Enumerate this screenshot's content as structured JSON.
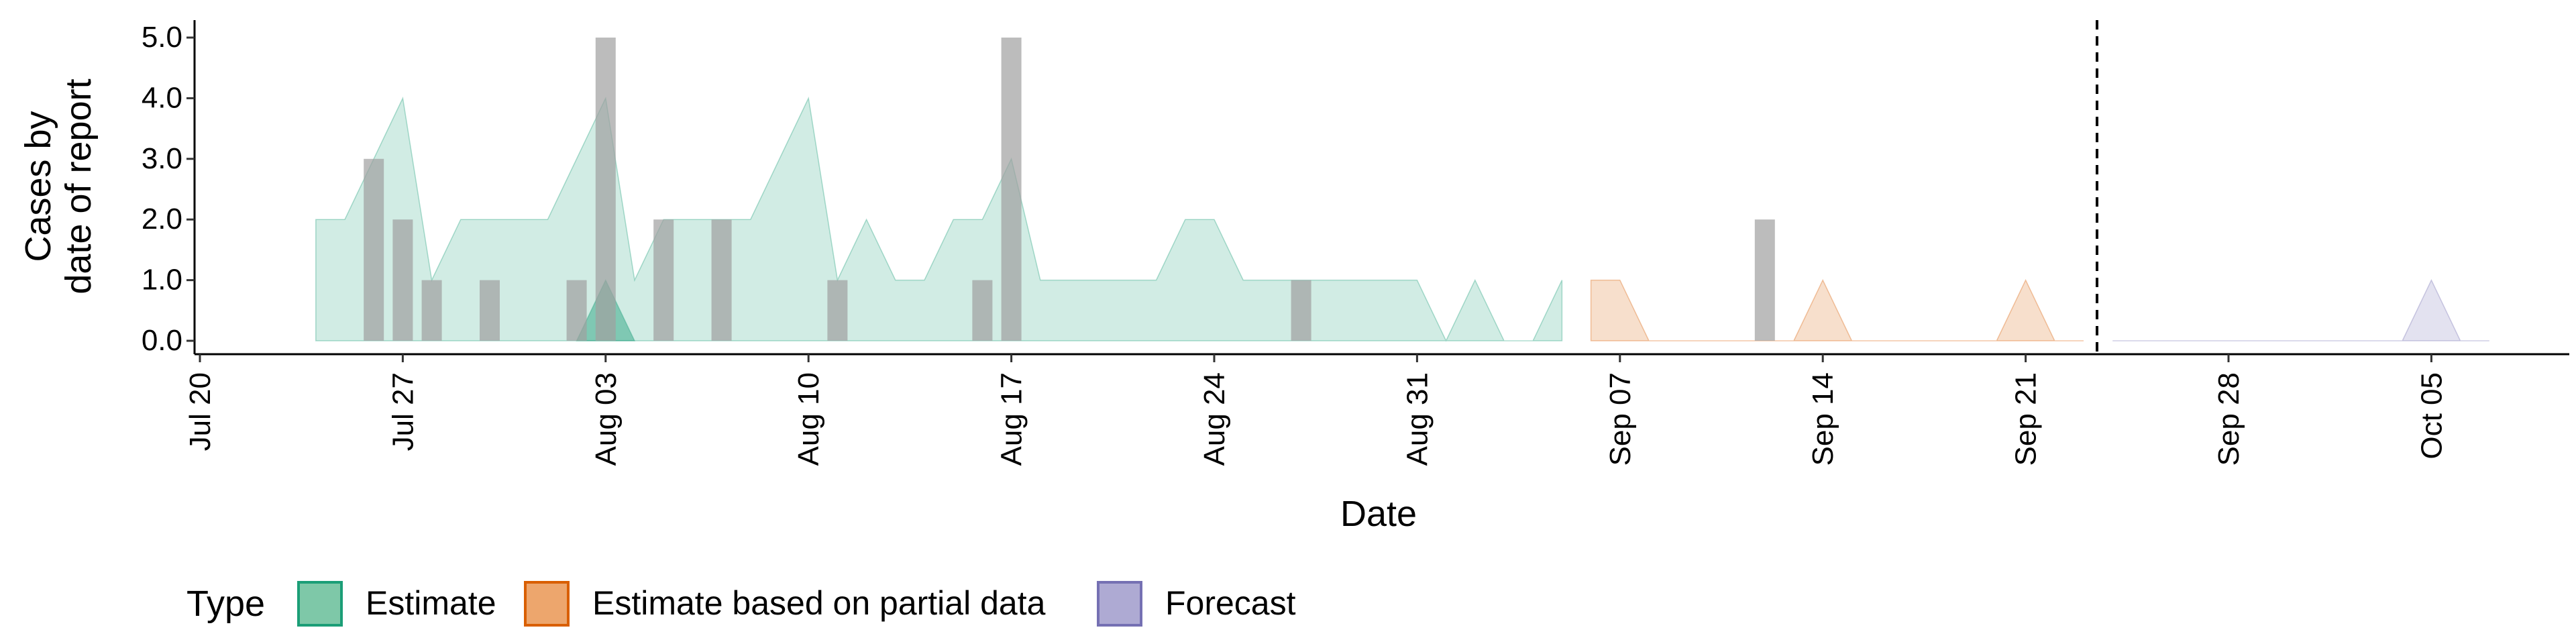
{
  "chart_data": {
    "type": "area",
    "xlabel": "Date",
    "ylabel_lines": [
      "Cases by",
      "date of report"
    ],
    "y_ticks": [
      "0.0",
      "1.0",
      "2.0",
      "3.0",
      "4.0",
      "5.0"
    ],
    "y_tick_values": [
      0,
      1,
      2,
      3,
      4,
      5
    ],
    "x_tick_labels": [
      "Jul 20",
      "Jul 27",
      "Aug 03",
      "Aug 10",
      "Aug 17",
      "Aug 24",
      "Aug 31",
      "Sep 07",
      "Sep 14",
      "Sep 21",
      "Sep 28",
      "Oct 05"
    ],
    "x_tick_dates": [
      "2020-07-20",
      "2020-07-27",
      "2020-08-03",
      "2020-08-10",
      "2020-08-17",
      "2020-08-24",
      "2020-08-31",
      "2020-09-07",
      "2020-09-14",
      "2020-09-21",
      "2020-09-28",
      "2020-10-05"
    ],
    "ylim": [
      0,
      5
    ],
    "xlim": [
      "2020-07-20",
      "2020-10-11"
    ],
    "vline_date": "2020-09-23",
    "legend": {
      "title": "Type",
      "position": "bottom",
      "items": [
        {
          "label": "Estimate",
          "fill": "#7ec8a8",
          "stroke": "#1b9e77"
        },
        {
          "label": "Estimate based on partial data",
          "fill": "#eda66d",
          "stroke": "#d95f02"
        },
        {
          "label": "Forecast",
          "fill": "#aeaad3",
          "stroke": "#7570b3"
        }
      ]
    },
    "series": [
      {
        "name": "Estimate",
        "color": "#1b9e77",
        "opacity": 0.2,
        "x": [
          "2020-07-24",
          "2020-07-25",
          "2020-07-26",
          "2020-07-27",
          "2020-07-28",
          "2020-07-29",
          "2020-07-30",
          "2020-07-31",
          "2020-08-01",
          "2020-08-02",
          "2020-08-03",
          "2020-08-04",
          "2020-08-05",
          "2020-08-06",
          "2020-08-07",
          "2020-08-08",
          "2020-08-09",
          "2020-08-10",
          "2020-08-11",
          "2020-08-12",
          "2020-08-13",
          "2020-08-14",
          "2020-08-15",
          "2020-08-16",
          "2020-08-17",
          "2020-08-18",
          "2020-08-19",
          "2020-08-20",
          "2020-08-21",
          "2020-08-22",
          "2020-08-23",
          "2020-08-24",
          "2020-08-25",
          "2020-08-26",
          "2020-08-27",
          "2020-08-28",
          "2020-08-29",
          "2020-08-30",
          "2020-08-31",
          "2020-09-01",
          "2020-09-02",
          "2020-09-03",
          "2020-09-04",
          "2020-09-05"
        ],
        "values": [
          2,
          2,
          3,
          4,
          1,
          2,
          2,
          2,
          2,
          3,
          4,
          1,
          2,
          2,
          2,
          2,
          3,
          4,
          1,
          2,
          1,
          1,
          2,
          2,
          3,
          1,
          1,
          1,
          1,
          1,
          2,
          2,
          1,
          1,
          1,
          1,
          1,
          1,
          1,
          0,
          1,
          0,
          0,
          1
        ]
      },
      {
        "name": "Estimate",
        "color": "#1b9e77",
        "opacity": 0.45,
        "x": [
          "2020-08-02",
          "2020-08-03",
          "2020-08-04"
        ],
        "values": [
          0,
          1,
          0
        ]
      },
      {
        "name": "Estimate based on partial data",
        "color": "#d95f02",
        "opacity": 0.2,
        "x": [
          "2020-09-06",
          "2020-09-07",
          "2020-09-08",
          "2020-09-09",
          "2020-09-10",
          "2020-09-11",
          "2020-09-12",
          "2020-09-13",
          "2020-09-14",
          "2020-09-15",
          "2020-09-16",
          "2020-09-17",
          "2020-09-18",
          "2020-09-19",
          "2020-09-20",
          "2020-09-21",
          "2020-09-22",
          "2020-09-23"
        ],
        "values": [
          1,
          1,
          0,
          0,
          0,
          0,
          0,
          0,
          1,
          0,
          0,
          0,
          0,
          0,
          0,
          1,
          0,
          0
        ]
      },
      {
        "name": "Forecast",
        "color": "#7570b3",
        "opacity": 0.2,
        "x": [
          "2020-09-24",
          "2020-09-25",
          "2020-09-26",
          "2020-09-27",
          "2020-09-28",
          "2020-09-29",
          "2020-09-30",
          "2020-10-01",
          "2020-10-02",
          "2020-10-03",
          "2020-10-04",
          "2020-10-05",
          "2020-10-06",
          "2020-10-07"
        ],
        "values": [
          0,
          0,
          0,
          0,
          0,
          0,
          0,
          0,
          0,
          0,
          0,
          1,
          0,
          0
        ]
      }
    ],
    "bars": {
      "color": "#a0a0a0",
      "x": [
        "2020-07-26",
        "2020-07-27",
        "2020-07-28",
        "2020-07-30",
        "2020-08-02",
        "2020-08-03",
        "2020-08-05",
        "2020-08-07",
        "2020-08-11",
        "2020-08-16",
        "2020-08-17",
        "2020-08-27",
        "2020-09-12"
      ],
      "values": [
        3,
        2,
        1,
        1,
        1,
        5,
        2,
        2,
        1,
        1,
        5,
        1,
        2
      ]
    }
  }
}
